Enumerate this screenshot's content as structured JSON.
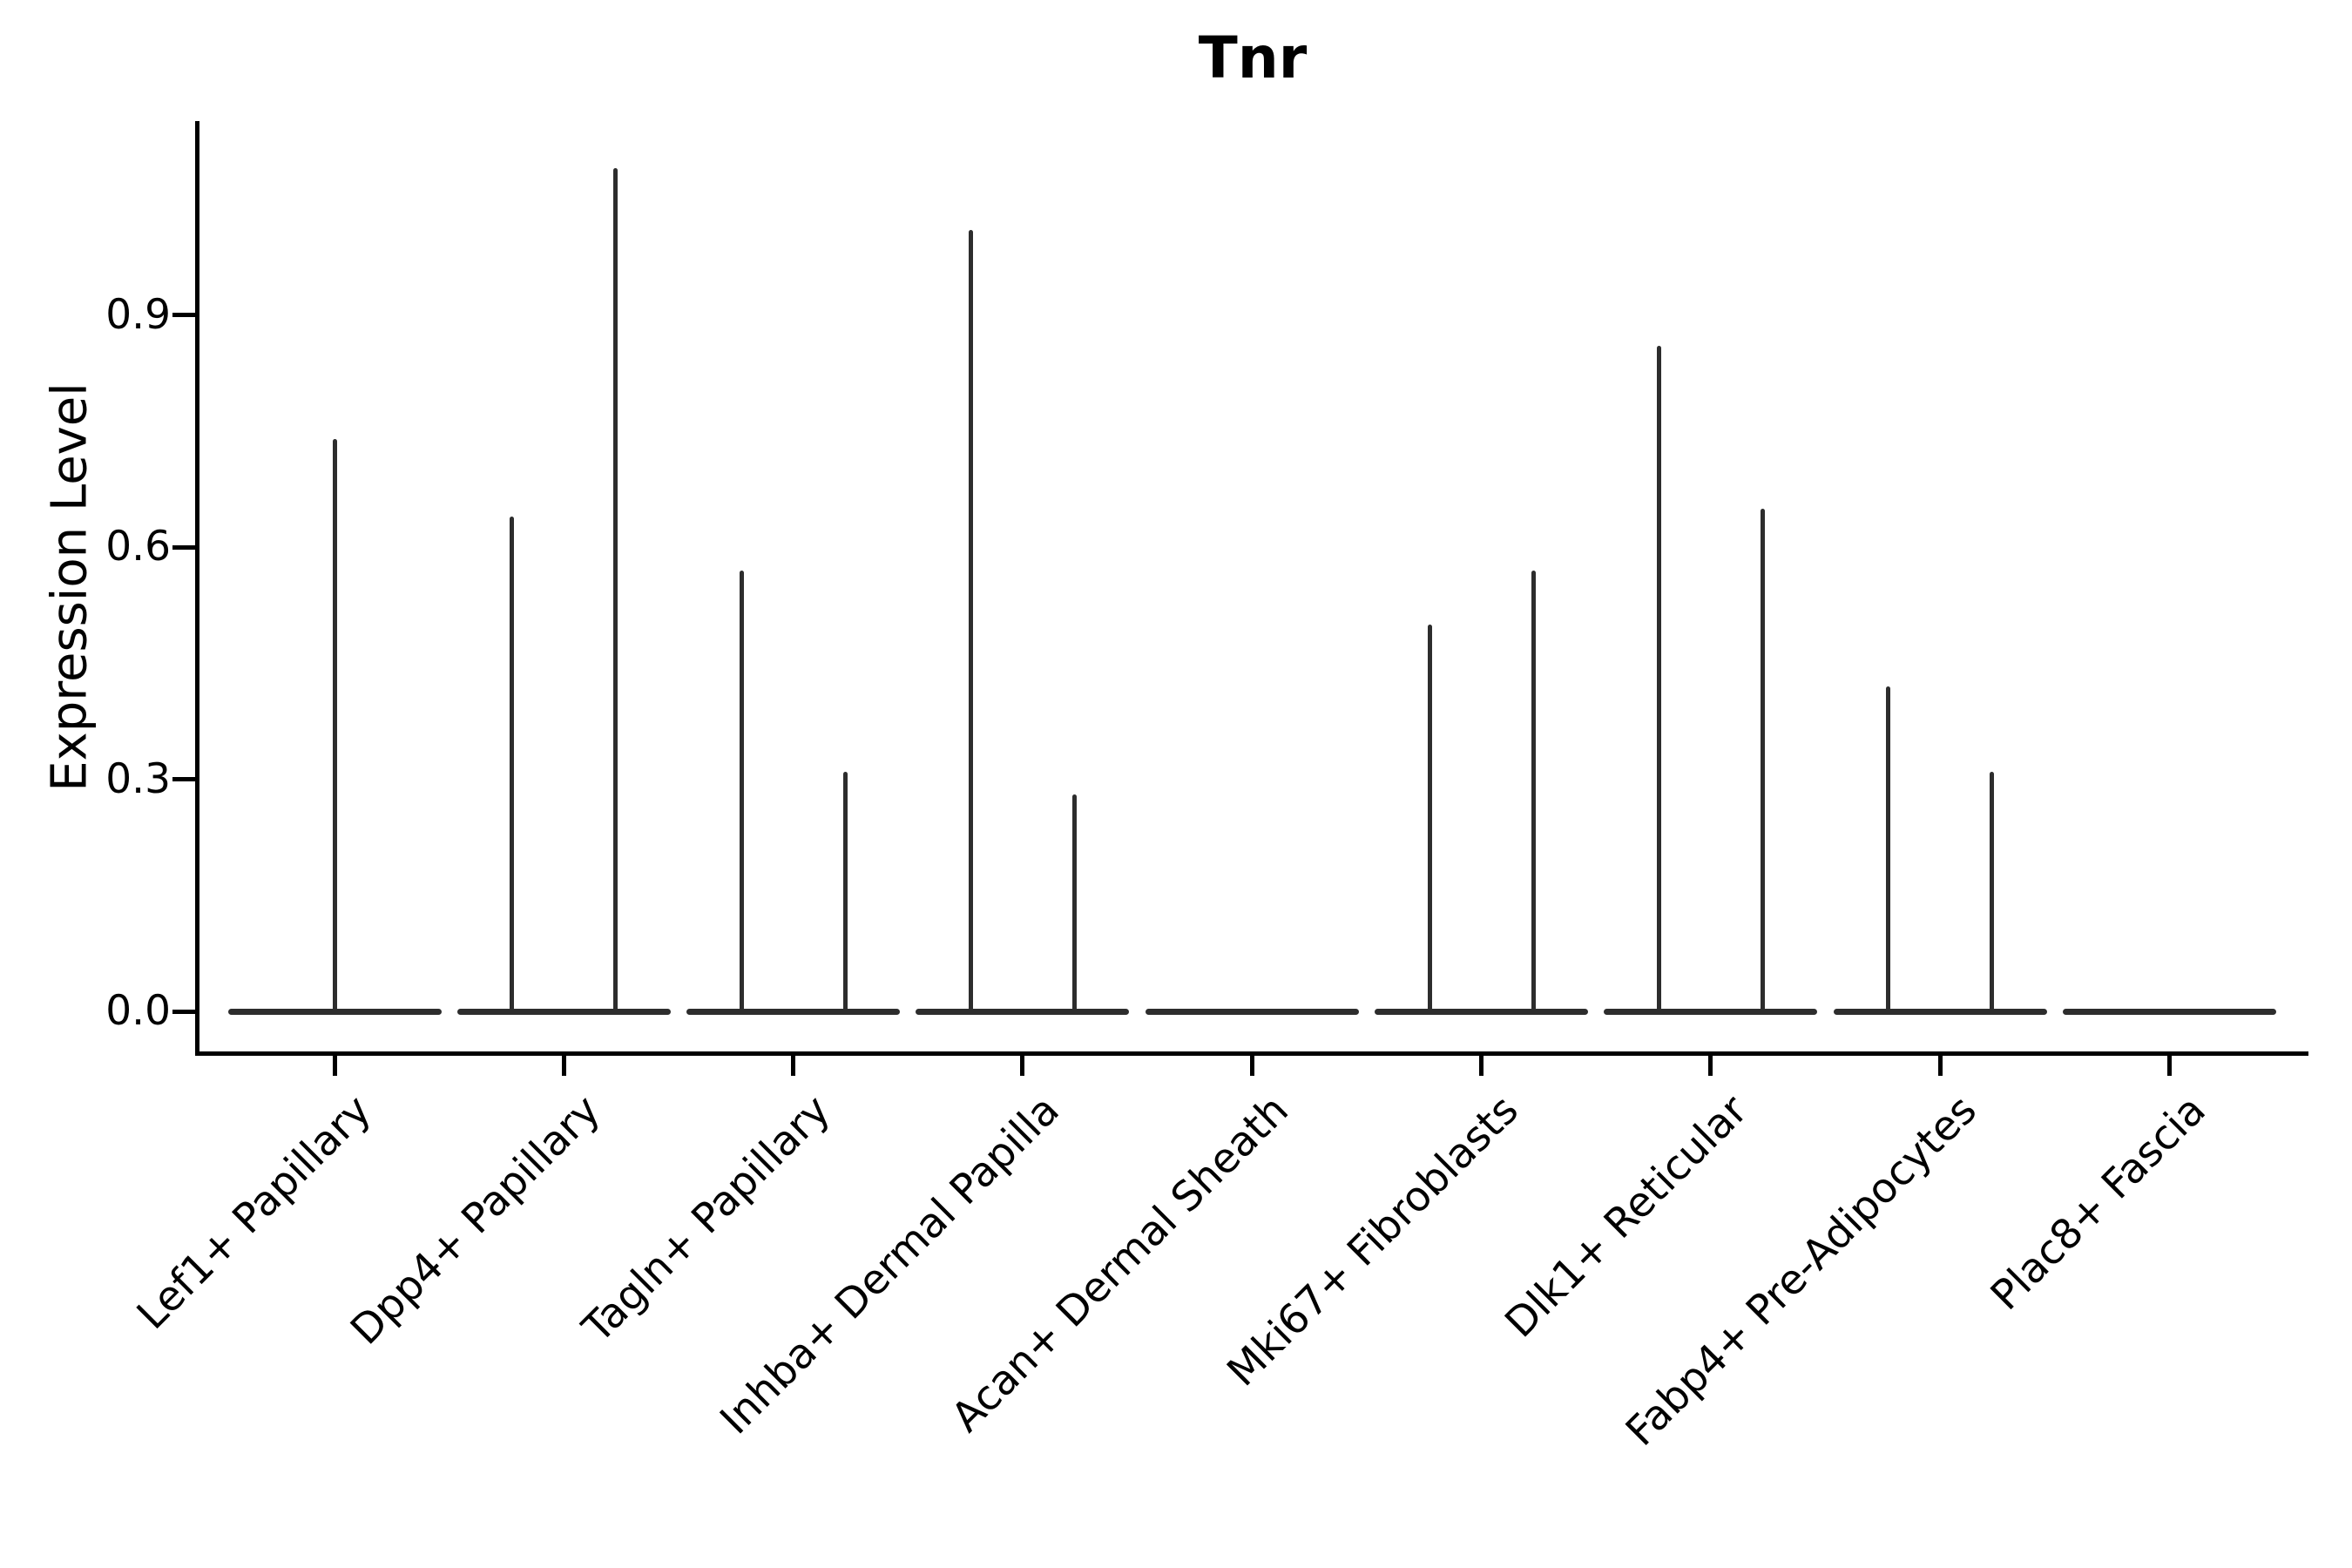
{
  "title": "Tnr",
  "axes": {
    "y_label": "Expression Level"
  },
  "colors": {
    "violin_line": "#2d2d2d",
    "axis": "#000000",
    "text": "#000000",
    "background": "#ffffff"
  },
  "chart_data": {
    "type": "violin",
    "title": "Tnr",
    "xlabel": "",
    "ylabel": "Expression Level",
    "ylim": [
      -0.05,
      1.15
    ],
    "yticks": [
      0.0,
      0.3,
      0.6,
      0.9
    ],
    "ytick_labels": [
      "0.0",
      "0.3",
      "0.6",
      "0.9"
    ],
    "grid": false,
    "legend_position": "none",
    "x_tick_rotation_degrees": 45,
    "categories": [
      "Lef1+ Papillary",
      "Dpp4+ Papillary",
      "Tagln+ Papillary",
      "Inhba+ Dermal Papilla",
      "Acan+ Dermal Sheath",
      "Mki67+ Fibroblasts",
      "Dlk1+ Reticular",
      "Fabp4+ Pre-Adipocytes",
      "Plac8+ Fascia"
    ],
    "description": "Violin plot of Tnr expression per cluster; each category shows violins collapsed to a flat line at 0 expression with thin needle-like density spikes rising to the maximum expression of sparse expressing cells. Most categories contain two side-by-side (dodged) spikes.",
    "violins": [
      {
        "category": "Lef1+ Papillary",
        "spikes": [
          {
            "side": "center",
            "max_expression": 0.74
          }
        ]
      },
      {
        "category": "Dpp4+ Papillary",
        "spikes": [
          {
            "side": "left",
            "max_expression": 0.64
          },
          {
            "side": "right",
            "max_expression": 1.09
          }
        ]
      },
      {
        "category": "Tagln+ Papillary",
        "spikes": [
          {
            "side": "left",
            "max_expression": 0.57
          },
          {
            "side": "right",
            "max_expression": 0.31
          }
        ]
      },
      {
        "category": "Inhba+ Dermal Papilla",
        "spikes": [
          {
            "side": "left",
            "max_expression": 1.01
          },
          {
            "side": "right",
            "max_expression": 0.28
          }
        ]
      },
      {
        "category": "Acan+ Dermal Sheath",
        "spikes": []
      },
      {
        "category": "Mki67+ Fibroblasts",
        "spikes": [
          {
            "side": "left",
            "max_expression": 0.5
          },
          {
            "side": "right",
            "max_expression": 0.57
          }
        ]
      },
      {
        "category": "Dlk1+ Reticular",
        "spikes": [
          {
            "side": "left",
            "max_expression": 0.86
          },
          {
            "side": "right",
            "max_expression": 0.65
          }
        ]
      },
      {
        "category": "Fabp4+ Pre-Adipocytes",
        "spikes": [
          {
            "side": "left",
            "max_expression": 0.42
          },
          {
            "side": "right",
            "max_expression": 0.31
          }
        ]
      },
      {
        "category": "Plac8+ Fascia",
        "spikes": []
      }
    ]
  }
}
